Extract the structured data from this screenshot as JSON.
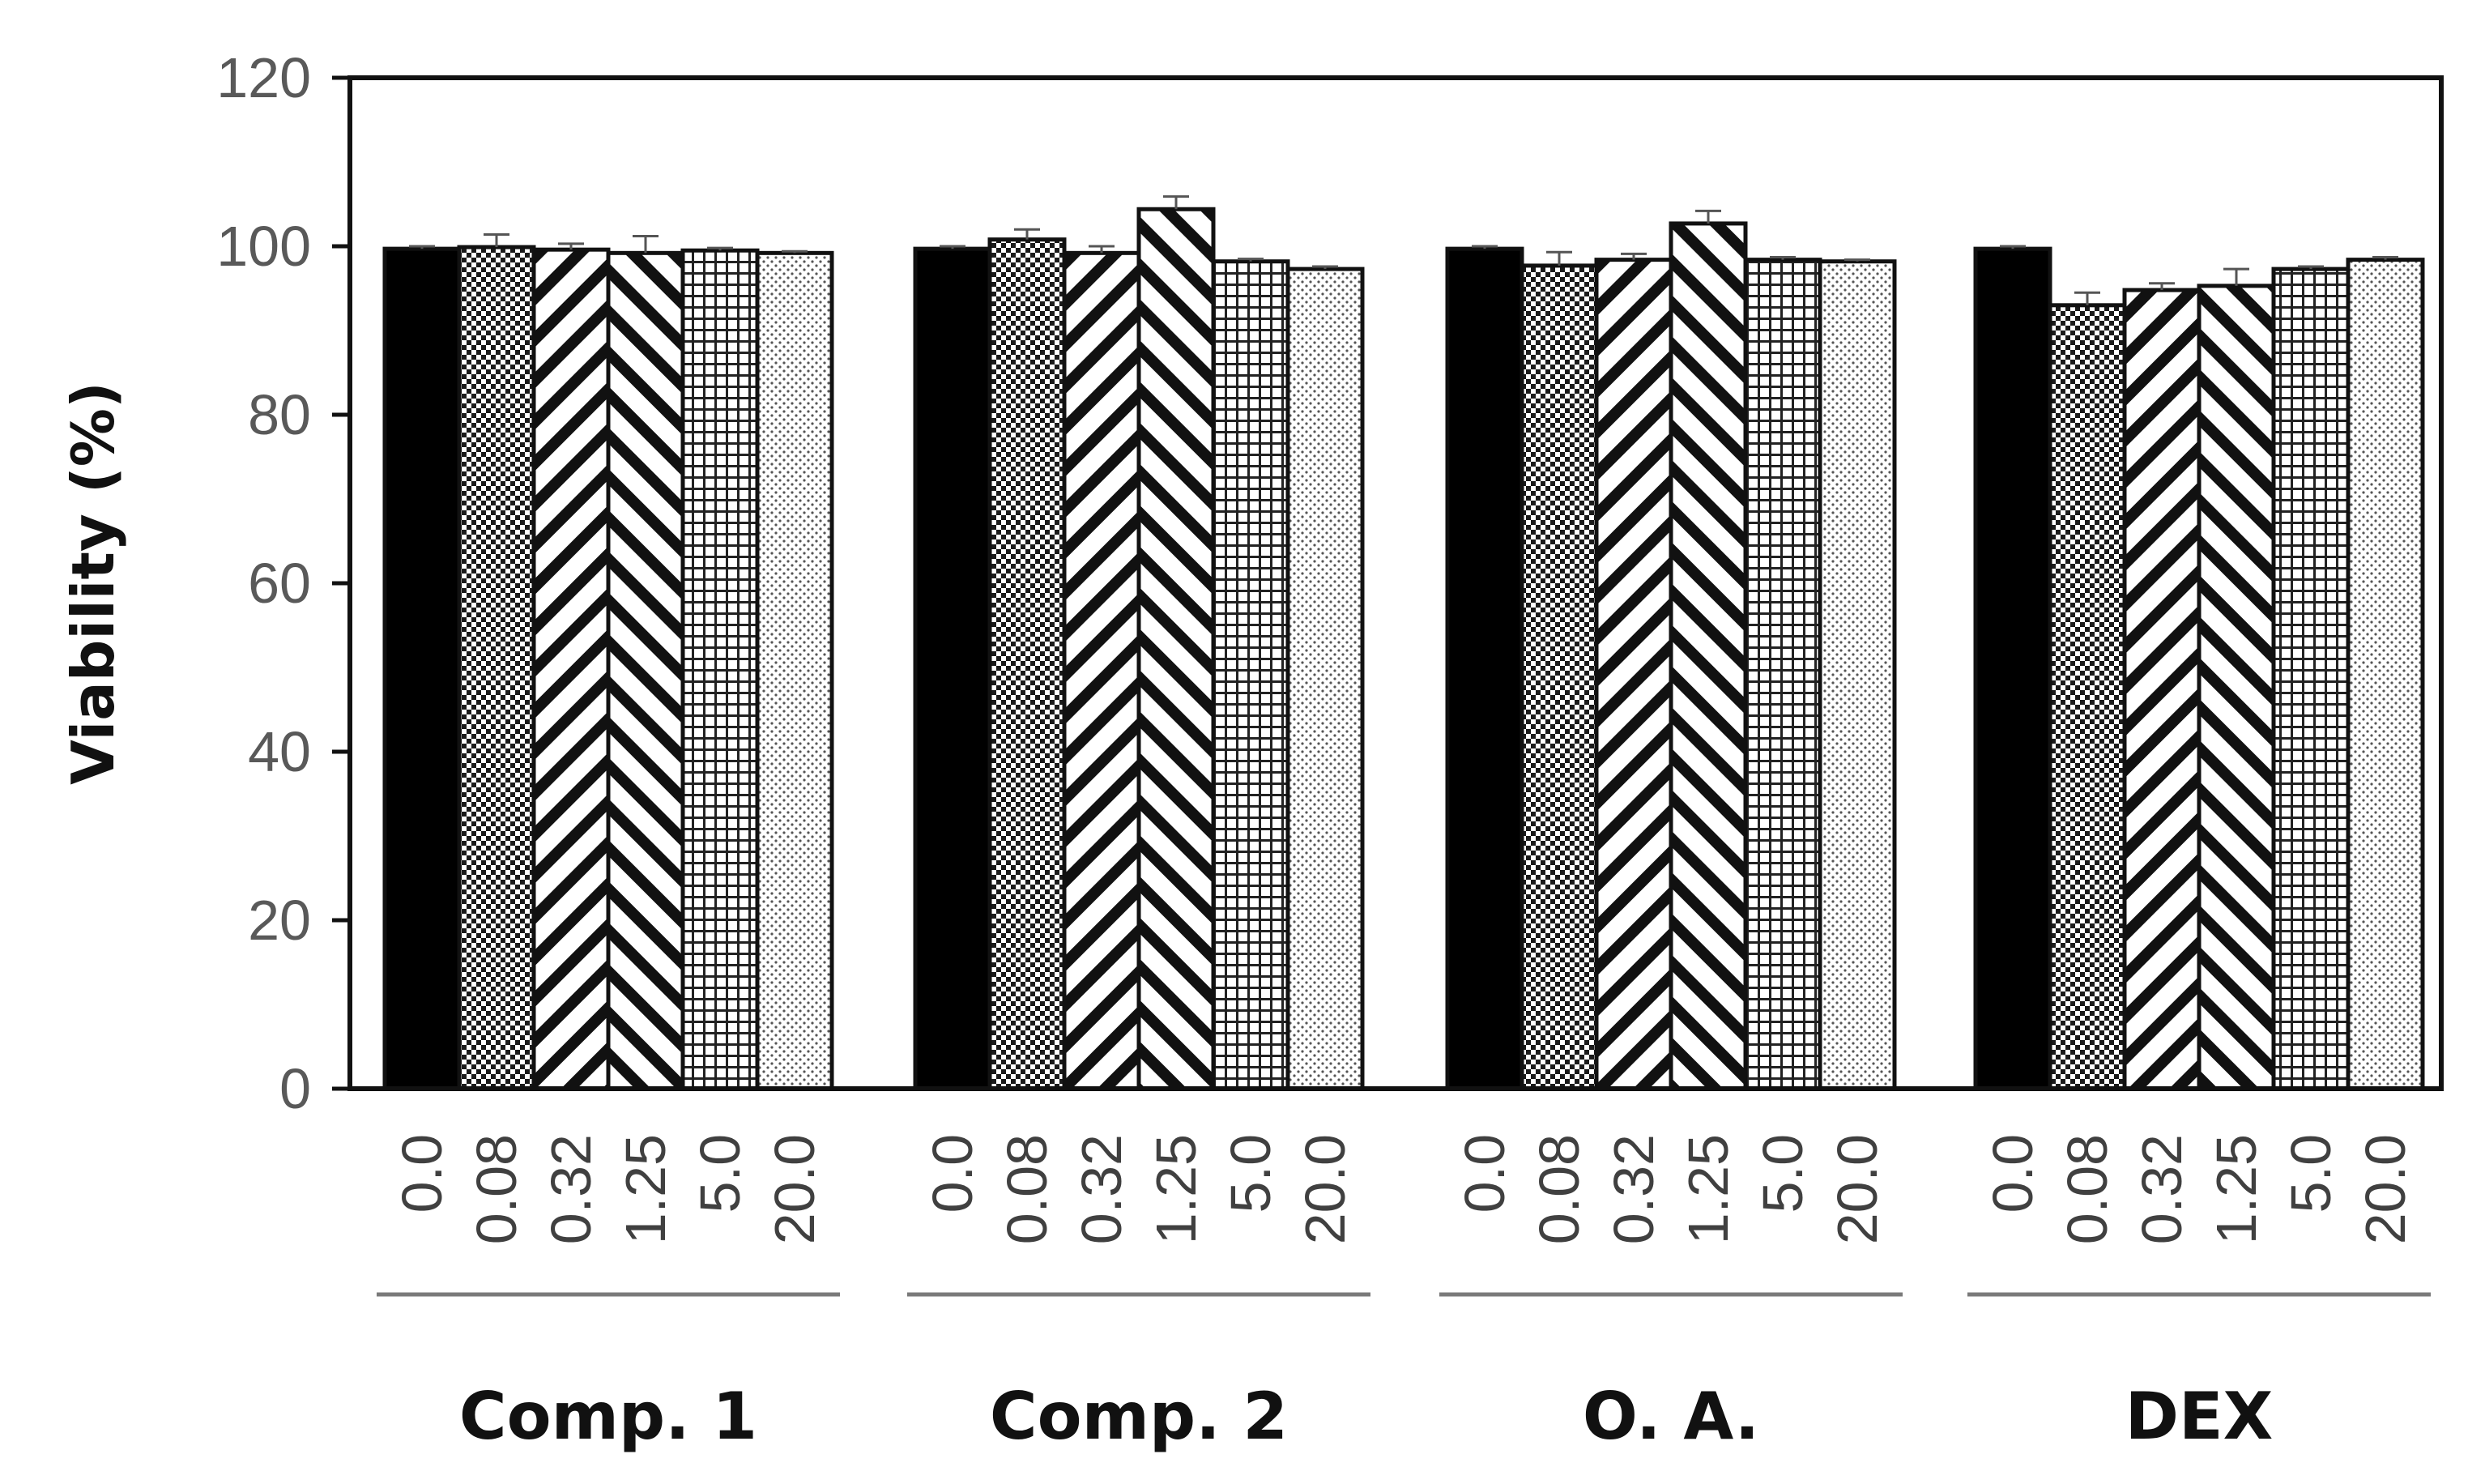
{
  "chart_data": {
    "type": "bar",
    "ylabel": "Viability (%)",
    "xlabel": "",
    "ylim": [
      0,
      120
    ],
    "yticks": [
      "0",
      "20",
      "40",
      "60",
      "80",
      "100",
      "120"
    ],
    "categories": [
      "0.0",
      "0.08",
      "0.32",
      "1.25",
      "5.0",
      "20.0"
    ],
    "groups": [
      {
        "name": "Comp. 1",
        "values": [
          99.7,
          99.9,
          99.6,
          99.2,
          99.5,
          99.2
        ],
        "errors": [
          0.3,
          1.5,
          0.7,
          2.0,
          0.3,
          0.2
        ]
      },
      {
        "name": "Comp. 2",
        "values": [
          99.7,
          100.8,
          99.2,
          104.4,
          98.2,
          97.3
        ],
        "errors": [
          0.3,
          1.2,
          0.8,
          1.5,
          0.3,
          0.3
        ]
      },
      {
        "name": "O. A.",
        "values": [
          99.7,
          97.7,
          98.4,
          102.7,
          98.4,
          98.2
        ],
        "errors": [
          0.3,
          1.6,
          0.7,
          1.5,
          0.3,
          0.2
        ]
      },
      {
        "name": "DEX",
        "values": [
          99.7,
          93.0,
          94.8,
          95.3,
          97.3,
          98.4
        ],
        "errors": [
          0.3,
          1.5,
          0.8,
          2.0,
          0.3,
          0.3
        ]
      }
    ],
    "patterns": [
      "solid-black",
      "checker",
      "diag-up",
      "diag-down",
      "grid",
      "dots"
    ],
    "grid": false,
    "legend": "none"
  }
}
